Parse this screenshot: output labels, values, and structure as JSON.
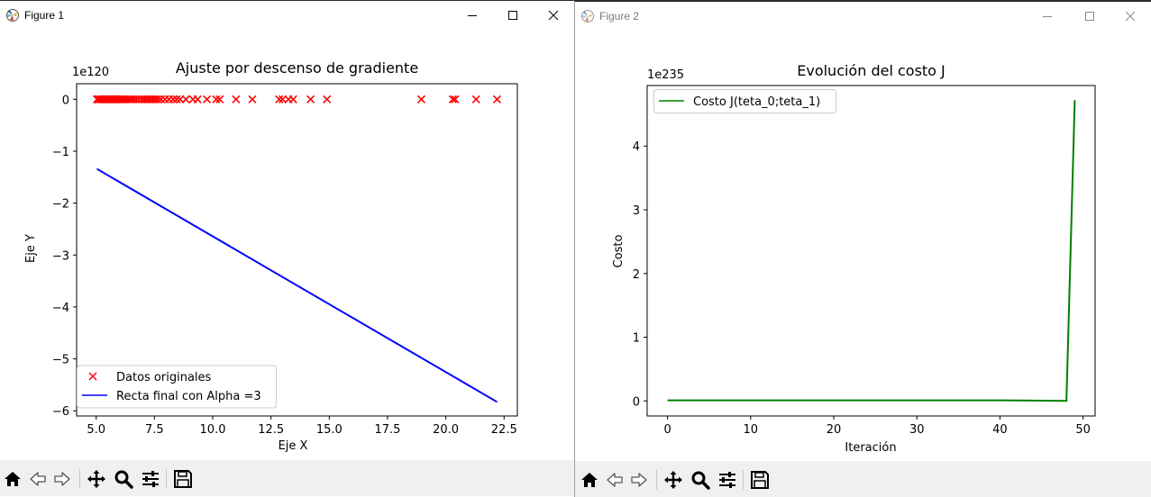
{
  "figure1": {
    "window_title": "Figure 1",
    "window_controls": [
      "minimize",
      "maximize",
      "close"
    ],
    "toolbar": [
      "home-icon",
      "back-arrow-icon",
      "forward-arrow-icon",
      "pan-icon",
      "zoom-icon",
      "configure-subplots-icon",
      "save-icon"
    ]
  },
  "figure2": {
    "window_title": "Figure 2",
    "window_controls": [
      "minimize",
      "maximize",
      "close"
    ],
    "toolbar": [
      "home-icon",
      "back-arrow-icon",
      "forward-arrow-icon",
      "pan-icon",
      "zoom-icon",
      "configure-subplots-icon",
      "save-icon"
    ]
  },
  "chart_data": [
    {
      "type": "scatter",
      "title": "Ajuste por descenso de gradiente",
      "xlabel": "Eje X",
      "ylabel": "Eje Y",
      "offset_text": "1e120",
      "xlim": [
        4.16,
        23.07
      ],
      "ylim": [
        -6.1,
        0.3
      ],
      "xticks": [
        5.0,
        7.5,
        10.0,
        12.5,
        15.0,
        17.5,
        20.0,
        22.5
      ],
      "xtick_labels": [
        "5.0",
        "7.5",
        "10.0",
        "12.5",
        "15.0",
        "17.5",
        "20.0",
        "22.5"
      ],
      "yticks": [
        0,
        -1,
        -2,
        -3,
        -4,
        -5,
        -6
      ],
      "ytick_labels": [
        "0",
        "−1",
        "−2",
        "−3",
        "−4",
        "−5",
        "−6"
      ],
      "legend_position": "lower-left",
      "series": [
        {
          "name": "Datos originales",
          "kind": "scatter",
          "marker": "x",
          "color": "#ff0000",
          "x": [
            5.03,
            5.09,
            5.13,
            5.2,
            5.26,
            5.31,
            5.37,
            5.43,
            5.49,
            5.54,
            5.6,
            5.66,
            5.71,
            5.77,
            5.83,
            5.89,
            5.95,
            6.0,
            6.06,
            6.12,
            6.18,
            6.25,
            6.33,
            6.42,
            6.5,
            6.6,
            6.7,
            6.82,
            6.95,
            7.05,
            7.15,
            7.25,
            7.35,
            7.45,
            7.55,
            7.65,
            7.78,
            7.95,
            8.12,
            8.3,
            8.45,
            8.6,
            8.85,
            9.15,
            9.35,
            9.75,
            10.15,
            10.3,
            11.0,
            11.7,
            12.85,
            13.0,
            13.25,
            13.45,
            14.2,
            14.9,
            18.95,
            20.3,
            20.4,
            21.3,
            22.2
          ],
          "y": [
            0,
            0,
            0,
            0,
            0,
            0,
            0,
            0,
            0,
            0,
            0,
            0,
            0,
            0,
            0,
            0,
            0,
            0,
            0,
            0,
            0,
            0,
            0,
            0,
            0,
            0,
            0,
            0,
            0,
            0,
            0,
            0,
            0,
            0,
            0,
            0,
            0,
            0,
            0,
            0,
            0,
            0,
            0,
            0,
            0,
            0,
            0,
            0,
            0,
            0,
            0,
            0,
            0,
            0,
            0,
            0,
            0,
            0,
            0,
            0,
            0
          ]
        },
        {
          "name": "Recta final con Alpha =3",
          "kind": "line",
          "color": "#0000ff",
          "x": [
            5.03,
            22.2
          ],
          "y": [
            -1.34,
            -5.83
          ]
        }
      ]
    },
    {
      "type": "line",
      "title": "Evolución del costo J",
      "xlabel": "Iteración",
      "ylabel": "Costo",
      "offset_text": "1e235",
      "xlim": [
        -2.45,
        51.45
      ],
      "ylim": [
        -0.236,
        4.95
      ],
      "xticks": [
        0,
        10,
        20,
        30,
        40,
        50
      ],
      "xtick_labels": [
        "0",
        "10",
        "20",
        "30",
        "40",
        "50"
      ],
      "yticks": [
        0,
        1,
        2,
        3,
        4
      ],
      "ytick_labels": [
        "0",
        "1",
        "2",
        "3",
        "4"
      ],
      "legend_position": "top-left",
      "series": [
        {
          "name": "Costo J(teta_0;teta_1)",
          "color": "#008000",
          "x": [
            0,
            10,
            20,
            30,
            40,
            48,
            49
          ],
          "y": [
            0.01,
            0.01,
            0.01,
            0.01,
            0.01,
            0.0,
            4.72
          ]
        }
      ]
    }
  ]
}
